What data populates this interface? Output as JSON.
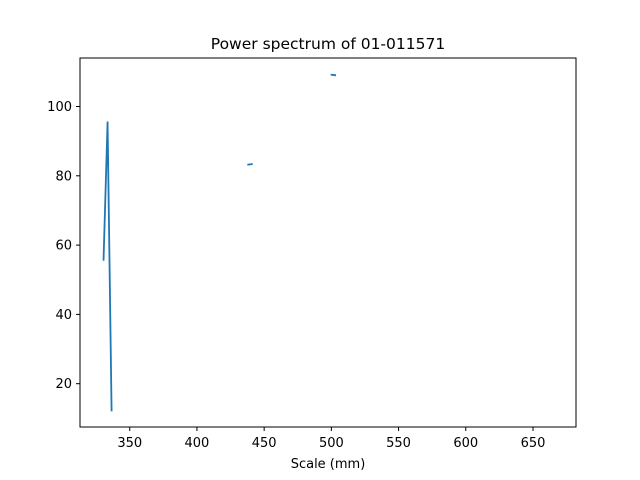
{
  "chart_data": {
    "type": "line",
    "title": "Power spectrum of 01-011571",
    "xlabel": "Scale (mm)",
    "ylabel": "",
    "xlim": [
      313,
      682
    ],
    "ylim": [
      7.5,
      114
    ],
    "xticks": [
      350,
      400,
      450,
      500,
      550,
      600,
      650
    ],
    "yticks": [
      20,
      40,
      60,
      80,
      100
    ],
    "grid": false,
    "line_color": "#1f77b4",
    "series": [
      {
        "segments": [
          [
            [
              330.5,
              55.5
            ],
            [
              333.5,
              95.5
            ],
            [
              336.5,
              12.0
            ]
          ],
          [
            [
              437.5,
              83.2
            ],
            [
              441.5,
              83.4
            ]
          ],
          [
            [
              499.5,
              109.2
            ],
            [
              503.5,
              109.0
            ]
          ]
        ]
      }
    ]
  }
}
